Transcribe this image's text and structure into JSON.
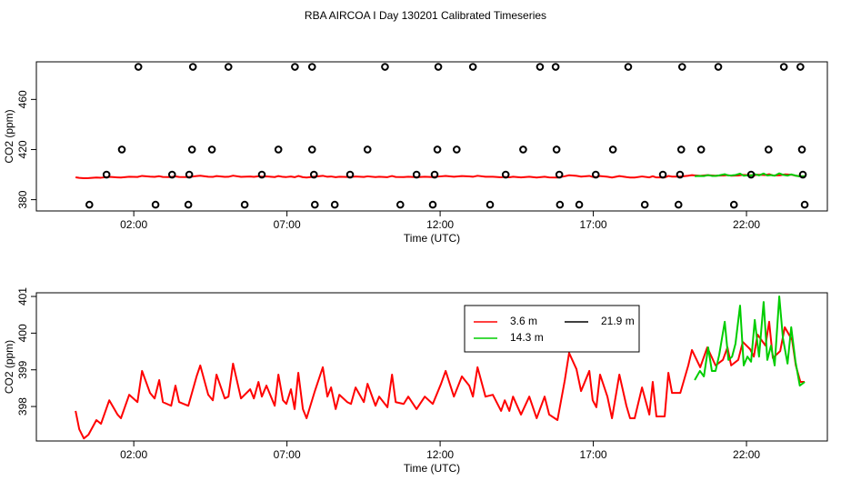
{
  "chart_data": [
    {
      "type": "scatter",
      "title": "RBA AIRCOA I  Day 130201  Calibrated Timeseries",
      "xlabel": "Time (UTC)",
      "ylabel": "CO2 (ppm)",
      "xlim": [
        -1.18,
        24.64
      ],
      "xticks": [
        {
          "value": 2,
          "label": "02:00"
        },
        {
          "value": 7,
          "label": "07:00"
        },
        {
          "value": 12,
          "label": "12:00"
        },
        {
          "value": 17,
          "label": "17:00"
        },
        {
          "value": 22,
          "label": "22:00"
        }
      ],
      "ylim": [
        371,
        490
      ],
      "yticks": [
        380,
        420,
        460
      ],
      "series": [
        {
          "color": "#000000",
          "x": [
            2.15,
            3.93,
            5.09,
            7.26,
            7.82,
            10.2,
            11.94,
            13.07,
            15.26,
            15.77,
            18.14,
            19.9,
            21.08,
            23.22,
            23.76,
            1.61,
            3.9,
            4.55,
            6.72,
            7.82,
            9.63,
            11.91,
            12.54,
            14.71,
            15.8,
            17.64,
            19.87,
            20.52,
            22.72,
            23.81,
            1.11,
            3.25,
            3.81,
            6.18,
            7.88,
            9.06,
            11.23,
            11.82,
            14.14,
            15.89,
            17.08,
            19.27,
            19.83,
            22.15,
            23.84,
            0.55,
            2.71,
            3.78,
            5.62,
            7.91,
            8.56,
            10.7,
            11.76,
            13.63,
            15.91,
            16.54,
            18.68,
            19.78,
            21.59,
            23.9
          ],
          "values": [
            486,
            486,
            486,
            486,
            486,
            486,
            486,
            486,
            486,
            486,
            486,
            486,
            486,
            486,
            486,
            420,
            420,
            420,
            420,
            420,
            420,
            420,
            420,
            420,
            420,
            420,
            420,
            420,
            420,
            420,
            400,
            400,
            400,
            400,
            400,
            400,
            400,
            400,
            400,
            400,
            400,
            400,
            400,
            400,
            400,
            376,
            376,
            376,
            376,
            376,
            376,
            376,
            376,
            376,
            376,
            376,
            376,
            376,
            376,
            376
          ]
        }
      ]
    },
    {
      "type": "line",
      "xlabel": "Time (UTC)",
      "ylabel": "CO2 (ppm)",
      "xlim": [
        -1.18,
        24.64
      ],
      "xticks": [
        {
          "value": 2,
          "label": "02:00"
        },
        {
          "value": 7,
          "label": "07:00"
        },
        {
          "value": 12,
          "label": "12:00"
        },
        {
          "value": 17,
          "label": "17:00"
        },
        {
          "value": 22,
          "label": "22:00"
        }
      ],
      "ylim": [
        397.06,
        401.1
      ],
      "yticks": [
        398,
        399,
        400,
        401
      ],
      "legend": "top-right",
      "series": [
        {
          "name": "3.6 m",
          "color": "#ff0000",
          "x": [
            0.1,
            0.22,
            0.37,
            0.52,
            0.78,
            0.93,
            1.2,
            1.47,
            1.58,
            1.85,
            2.12,
            2.27,
            2.53,
            2.68,
            2.83,
            2.95,
            3.22,
            3.36,
            3.48,
            3.78,
            4.05,
            4.17,
            4.43,
            4.58,
            4.7,
            4.97,
            5.09,
            5.24,
            5.5,
            5.8,
            5.92,
            6.07,
            6.18,
            6.33,
            6.6,
            6.72,
            6.87,
            6.98,
            7.13,
            7.25,
            7.37,
            7.52,
            7.64,
            7.91,
            8.17,
            8.32,
            8.44,
            8.59,
            8.71,
            8.97,
            9.09,
            9.24,
            9.51,
            9.63,
            9.89,
            10.01,
            10.28,
            10.43,
            10.55,
            10.81,
            10.96,
            11.23,
            11.5,
            11.76,
            12.03,
            12.18,
            12.45,
            12.71,
            12.95,
            13.07,
            13.22,
            13.48,
            13.72,
            13.99,
            14.11,
            14.26,
            14.38,
            14.64,
            14.91,
            15.15,
            15.41,
            15.56,
            15.83,
            16.07,
            16.21,
            16.45,
            16.6,
            16.87,
            16.98,
            17.1,
            17.22,
            17.46,
            17.61,
            17.85,
            18.08,
            18.2,
            18.35,
            18.59,
            18.83,
            18.94,
            19.06,
            19.33,
            19.45,
            19.57,
            19.84,
            20.1,
            20.22,
            20.49,
            20.72,
            20.99,
            21.23,
            21.38,
            21.5,
            21.73,
            21.88,
            22.12,
            22.24,
            22.36,
            22.62,
            22.74,
            22.86,
            23.1,
            23.25,
            23.49,
            23.61,
            23.76,
            23.9
          ],
          "values": [
            397.88,
            397.38,
            397.13,
            397.23,
            397.63,
            397.53,
            398.17,
            397.78,
            397.68,
            398.32,
            398.12,
            398.97,
            398.37,
            398.22,
            398.72,
            398.12,
            398.02,
            398.57,
            398.12,
            398.02,
            398.82,
            399.12,
            398.32,
            398.17,
            398.87,
            398.22,
            398.27,
            399.17,
            398.22,
            398.47,
            398.22,
            398.67,
            398.27,
            398.57,
            398.02,
            398.87,
            398.17,
            398.07,
            398.47,
            397.93,
            398.92,
            397.93,
            397.68,
            398.42,
            399.07,
            398.27,
            398.52,
            397.93,
            398.32,
            398.12,
            398.07,
            398.52,
            398.12,
            398.62,
            398.02,
            398.27,
            397.98,
            398.87,
            398.12,
            398.07,
            398.27,
            397.93,
            398.27,
            398.07,
            398.62,
            398.97,
            398.27,
            398.82,
            398.57,
            398.27,
            399.07,
            398.27,
            398.32,
            397.88,
            398.17,
            397.88,
            398.27,
            397.78,
            398.27,
            397.68,
            398.27,
            397.78,
            397.63,
            398.72,
            399.46,
            399.02,
            398.42,
            398.97,
            398.17,
            397.98,
            398.87,
            398.27,
            397.68,
            398.87,
            398.02,
            397.68,
            397.68,
            398.52,
            397.78,
            398.67,
            397.73,
            397.73,
            398.92,
            398.37,
            398.37,
            399.12,
            399.54,
            399.07,
            399.61,
            399.12,
            399.27,
            399.61,
            399.12,
            399.27,
            399.76,
            399.56,
            399.36,
            399.96,
            399.66,
            400.31,
            399.32,
            399.51,
            400.16,
            399.81,
            399.12,
            398.67,
            398.67
          ]
        },
        {
          "name": "21.9 m",
          "color": "#000000",
          "x": [],
          "values": []
        },
        {
          "name": "14.3 m",
          "color": "#00cd00",
          "x": [
            20.31,
            20.48,
            20.61,
            20.75,
            20.87,
            20.99,
            21.11,
            21.29,
            21.41,
            21.53,
            21.64,
            21.79,
            21.91,
            22.03,
            22.15,
            22.27,
            22.41,
            22.56,
            22.68,
            22.8,
            22.92,
            23.07,
            23.19,
            23.34,
            23.46,
            23.6,
            23.74,
            23.9
          ],
          "values": [
            398.72,
            398.97,
            398.82,
            399.61,
            398.97,
            398.97,
            399.41,
            400.31,
            399.27,
            399.36,
            399.71,
            400.75,
            399.12,
            399.36,
            399.22,
            400.36,
            399.36,
            400.85,
            399.27,
            399.66,
            399.12,
            401.0,
            399.86,
            399.17,
            400.16,
            399.22,
            398.57,
            398.67
          ]
        }
      ]
    }
  ]
}
